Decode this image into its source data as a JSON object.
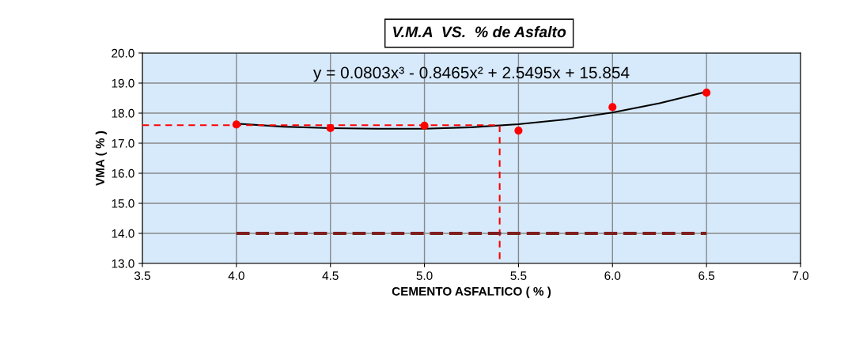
{
  "chart_data": {
    "type": "scatter",
    "title": "V.M.A  VS.  % de Asfalto",
    "xlabel": "CEMENTO ASFALTICO ( % )",
    "ylabel": "VMA ( % )",
    "x": [
      4.0,
      4.5,
      5.0,
      5.5,
      6.0,
      6.5
    ],
    "series": [
      {
        "color": "#ff0000",
        "marker": "circle",
        "values": [
          17.62,
          17.5,
          17.58,
          17.42,
          18.2,
          18.68
        ]
      },
      {
        "type": "line",
        "color": "#000000",
        "marker": "none",
        "line_style": "solid",
        "x": [
          4.0,
          4.25,
          4.5,
          4.75,
          5.0,
          5.25,
          5.5,
          5.75,
          6.0,
          6.25,
          6.5
        ],
        "values": [
          17.65,
          17.55,
          17.5,
          17.48,
          17.48,
          17.53,
          17.63,
          17.79,
          18.02,
          18.33,
          18.71
        ]
      },
      {
        "type": "line",
        "color": "#ff0000",
        "marker": "none",
        "line_style": "dashed",
        "x": [
          3.5,
          5.4,
          5.4
        ],
        "values": [
          17.6,
          17.6,
          13.0
        ]
      },
      {
        "type": "line",
        "color": "#7f1f1f",
        "marker": "none",
        "line_style": "dashed",
        "x": [
          4.0,
          6.5
        ],
        "values": [
          14.0,
          14.0
        ]
      }
    ],
    "annotations": [
      "y = 0.0803x³ - 0.8465x² + 2.5495x + 15.854"
    ],
    "xlim": [
      3.5,
      7.0
    ],
    "xticks": [
      {
        "value": 3.5,
        "label": "3.5"
      },
      {
        "value": 4.0,
        "label": "4.0"
      },
      {
        "value": 4.5,
        "label": "4.5"
      },
      {
        "value": 5.0,
        "label": "5.0"
      },
      {
        "value": 5.5,
        "label": "5.5"
      },
      {
        "value": 6.0,
        "label": "6.0"
      },
      {
        "value": 6.5,
        "label": "6.5"
      },
      {
        "value": 7.0,
        "label": "7.0"
      }
    ],
    "ylim": [
      13.0,
      20.0
    ],
    "yticks": [
      {
        "value": 13,
        "label": "13.0"
      },
      {
        "value": 14,
        "label": "14.0"
      },
      {
        "value": 15,
        "label": "15.0"
      },
      {
        "value": 16,
        "label": "16.0"
      },
      {
        "value": 17,
        "label": "17.0"
      },
      {
        "value": 18,
        "label": "18.0"
      },
      {
        "value": 19,
        "label": "19.0"
      },
      {
        "value": 20,
        "label": "20.0"
      }
    ],
    "grid": true,
    "legend": false
  }
}
